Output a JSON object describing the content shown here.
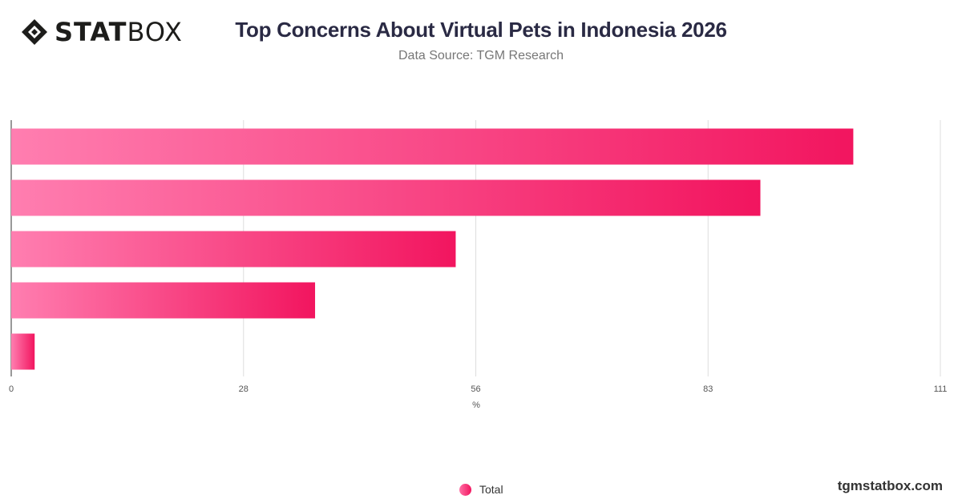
{
  "header": {
    "logo_text_bold": "STAT",
    "logo_text_light": "BOX",
    "title": "Top Concerns About Virtual Pets in Indonesia 2026",
    "subtitle": "Data Source: TGM Research"
  },
  "footer": {
    "site": "tgmstatbox.com"
  },
  "colors": {
    "bar_start": "#ff7eb0",
    "bar_end": "#f2155f",
    "grid": "#dddddd",
    "axis": "#333333"
  },
  "chart_data": {
    "type": "bar",
    "orientation": "horizontal",
    "categories": [
      "",
      "",
      "",
      "",
      ""
    ],
    "series": [
      {
        "name": "Total",
        "values": [
          100.6,
          89.5,
          53.1,
          36.3,
          2.8
        ]
      }
    ],
    "xlabel": "%",
    "xlim": [
      0,
      111
    ],
    "xticks": [
      "0",
      "28",
      "56",
      "83",
      "111"
    ],
    "grid": true,
    "legend": "bottom-center"
  }
}
